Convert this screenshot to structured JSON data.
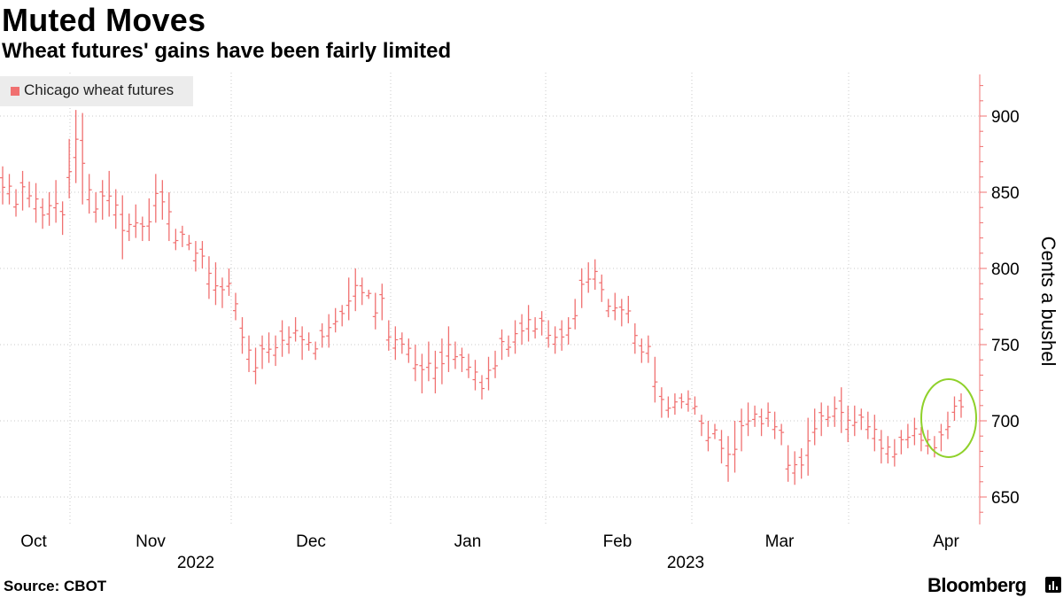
{
  "header": {
    "title": "Muted Moves",
    "subtitle": "Wheat futures' gains have been fairly limited"
  },
  "footer": {
    "source": "Source: CBOT",
    "brand": "Bloomberg",
    "brand_icon": "bloomberg-chart-icon"
  },
  "colors": {
    "series": "#f07070",
    "axis": "#f07070",
    "grid": "#c8c8c8",
    "annotation": "#8fd12a",
    "legend_bg": "#ececec"
  },
  "chart_data": {
    "type": "ohlc",
    "title": "Muted Moves",
    "subtitle": "Wheat futures' gains have been fairly limited",
    "ylabel": "Cents a bushel",
    "ylim": [
      630,
      925
    ],
    "y_ticks": [
      650,
      700,
      750,
      800,
      850,
      900
    ],
    "grid": true,
    "legend": {
      "position": "top-left",
      "entries": [
        "Chicago wheat futures"
      ]
    },
    "x_ticks": [
      "Oct",
      "Nov",
      "Dec",
      "Jan",
      "Feb",
      "Mar",
      "Apr"
    ],
    "year_labels": [
      {
        "label": "2022",
        "under": "Nov-Dec"
      },
      {
        "label": "2023",
        "under": "Feb-Mar"
      }
    ],
    "period": "2022-09-26 to 2023-04-04 (daily)",
    "series": [
      {
        "name": "Chicago wheat futures",
        "candles": [
          [
            867,
            842
          ],
          [
            862,
            842
          ],
          [
            852,
            834
          ],
          [
            864,
            838
          ],
          [
            857,
            840
          ],
          [
            856,
            830
          ],
          [
            846,
            826
          ],
          [
            850,
            828
          ],
          [
            858,
            830
          ],
          [
            844,
            822
          ],
          [
            885,
            846
          ],
          [
            904,
            856
          ],
          [
            902,
            842
          ],
          [
            862,
            836
          ],
          [
            850,
            830
          ],
          [
            858,
            832
          ],
          [
            864,
            834
          ],
          [
            852,
            826
          ],
          [
            848,
            806
          ],
          [
            836,
            818
          ],
          [
            842,
            820
          ],
          [
            834,
            818
          ],
          [
            846,
            818
          ],
          [
            862,
            830
          ],
          [
            858,
            832
          ],
          [
            850,
            818
          ],
          [
            826,
            812
          ],
          [
            828,
            814
          ],
          [
            822,
            812
          ],
          [
            818,
            798
          ],
          [
            818,
            800
          ],
          [
            808,
            780
          ],
          [
            804,
            776
          ],
          [
            794,
            774
          ],
          [
            800,
            782
          ],
          [
            784,
            766
          ],
          [
            768,
            744
          ],
          [
            756,
            732
          ],
          [
            748,
            724
          ],
          [
            756,
            734
          ],
          [
            758,
            738
          ],
          [
            756,
            736
          ],
          [
            766,
            742
          ],
          [
            762,
            744
          ],
          [
            768,
            752
          ],
          [
            762,
            740
          ],
          [
            758,
            746
          ],
          [
            752,
            740
          ],
          [
            764,
            748
          ],
          [
            770,
            748
          ],
          [
            774,
            758
          ],
          [
            776,
            762
          ],
          [
            794,
            766
          ],
          [
            800,
            772
          ],
          [
            794,
            776
          ],
          [
            786,
            780
          ],
          [
            784,
            760
          ],
          [
            790,
            766
          ],
          [
            766,
            746
          ],
          [
            762,
            740
          ],
          [
            758,
            744
          ],
          [
            754,
            738
          ],
          [
            750,
            726
          ],
          [
            744,
            718
          ],
          [
            752,
            726
          ],
          [
            746,
            718
          ],
          [
            754,
            724
          ],
          [
            762,
            732
          ],
          [
            752,
            734
          ],
          [
            748,
            732
          ],
          [
            744,
            728
          ],
          [
            740,
            720
          ],
          [
            730,
            714
          ],
          [
            742,
            720
          ],
          [
            746,
            728
          ],
          [
            760,
            740
          ],
          [
            756,
            742
          ],
          [
            766,
            744
          ],
          [
            770,
            750
          ],
          [
            776,
            752
          ],
          [
            768,
            754
          ],
          [
            772,
            756
          ],
          [
            766,
            748
          ],
          [
            762,
            744
          ],
          [
            766,
            746
          ],
          [
            768,
            750
          ],
          [
            780,
            760
          ],
          [
            800,
            774
          ],
          [
            804,
            784
          ],
          [
            806,
            786
          ],
          [
            796,
            778
          ],
          [
            780,
            768
          ],
          [
            784,
            766
          ],
          [
            780,
            762
          ],
          [
            782,
            764
          ],
          [
            764,
            744
          ],
          [
            754,
            738
          ],
          [
            756,
            738
          ],
          [
            742,
            712
          ],
          [
            722,
            702
          ],
          [
            716,
            702
          ],
          [
            718,
            704
          ],
          [
            718,
            708
          ],
          [
            720,
            706
          ],
          [
            716,
            704
          ],
          [
            704,
            690
          ],
          [
            700,
            680
          ],
          [
            698,
            688
          ],
          [
            694,
            672
          ],
          [
            690,
            660
          ],
          [
            700,
            666
          ],
          [
            708,
            680
          ],
          [
            712,
            690
          ],
          [
            710,
            696
          ],
          [
            708,
            690
          ],
          [
            712,
            696
          ],
          [
            706,
            688
          ],
          [
            698,
            684
          ],
          [
            684,
            660
          ],
          [
            680,
            658
          ],
          [
            682,
            662
          ],
          [
            702,
            664
          ],
          [
            708,
            684
          ],
          [
            712,
            690
          ],
          [
            710,
            696
          ],
          [
            716,
            696
          ],
          [
            722,
            692
          ],
          [
            710,
            686
          ],
          [
            710,
            690
          ],
          [
            708,
            694
          ],
          [
            706,
            688
          ],
          [
            704,
            680
          ],
          [
            694,
            672
          ],
          [
            690,
            672
          ],
          [
            688,
            670
          ],
          [
            694,
            678
          ],
          [
            698,
            682
          ],
          [
            702,
            684
          ],
          [
            696,
            680
          ],
          [
            694,
            678
          ],
          [
            690,
            676
          ],
          [
            698,
            680
          ],
          [
            706,
            688
          ],
          [
            716,
            700
          ],
          [
            718,
            702
          ]
        ]
      }
    ]
  }
}
